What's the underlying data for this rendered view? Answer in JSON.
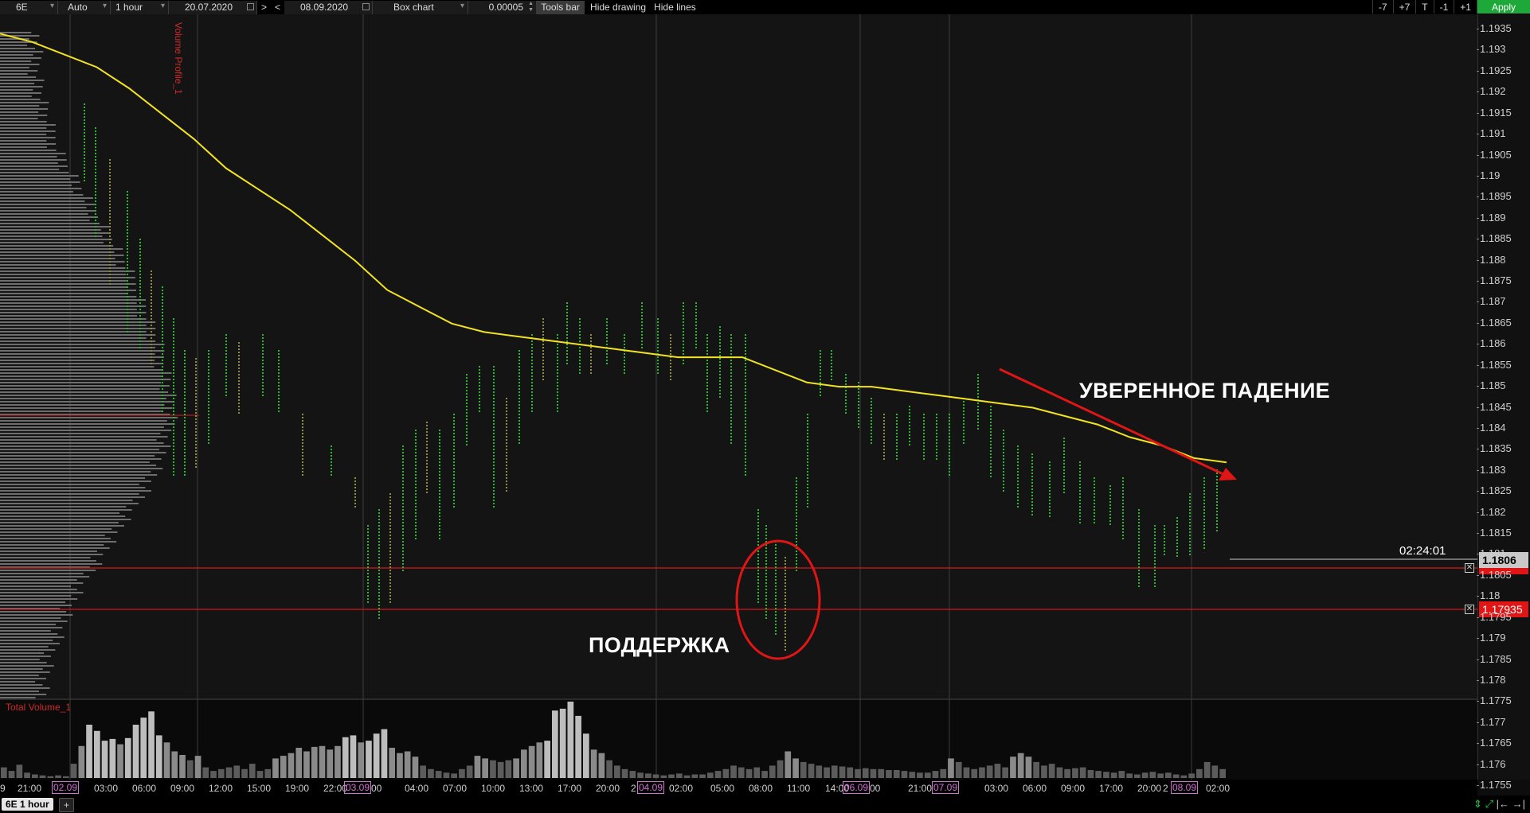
{
  "toolbar": {
    "symbol": "6E",
    "mode": "Auto",
    "timeframe": "1 hour",
    "date_from": "20.07.2020",
    "nav_next": ">",
    "nav_prev": "<",
    "date_to": "08.09.2020",
    "chart_type": "Box chart",
    "tick_size": "0.00005",
    "tools_bar": "Tools bar",
    "hide_drawing": "Hide drawing",
    "hide_lines": "Hide lines",
    "minus7": "-7",
    "plus7": "+7",
    "t_btn": "T",
    "minus1": "-1",
    "plus1": "+1",
    "apply": "Apply"
  },
  "indicators": {
    "volume_profile": "Volume Profile_1",
    "total_volume": "Total Volume_1"
  },
  "annotations": {
    "falling": "УВЕРЕННОЕ ПАДЕНИЕ",
    "support": "ПОДДЕРЖКА"
  },
  "status": {
    "timer": "02:24:01",
    "last_price": "1.1806",
    "level_price": "1.17935"
  },
  "price_axis": [
    "1.1935",
    "1.193",
    "1.1925",
    "1.192",
    "1.1915",
    "1.191",
    "1.1905",
    "1.19",
    "1.1895",
    "1.189",
    "1.1885",
    "1.188",
    "1.1875",
    "1.187",
    "1.1865",
    "1.186",
    "1.1855",
    "1.185",
    "1.1845",
    "1.184",
    "1.1835",
    "1.183",
    "1.1825",
    "1.182",
    "1.1815",
    "1.181",
    "1.1805",
    "1.18",
    "1.1795",
    "1.179",
    "1.1785",
    "1.178",
    "1.1775",
    "1.177",
    "1.1765",
    "1.176",
    "1.1755"
  ],
  "time_axis": [
    "9",
    "21:00",
    "02.09",
    "03:00",
    "06:00",
    "09:00",
    "12:00",
    "15:00",
    "19:00",
    "22:00",
    "03.09",
    "00",
    "04:00",
    "07:00",
    "10:00",
    "13:00",
    "17:00",
    "20:00",
    "2",
    "04.09",
    "02:00",
    "05:00",
    "08:00",
    "11:00",
    "14:00",
    "06.09",
    "00",
    "21:00",
    "07.09",
    "03:00",
    "06:00",
    "09:00",
    "17:00",
    "20:00",
    "2",
    "08.09",
    "02:00"
  ],
  "bottom": {
    "tab_label": "6E 1 hour",
    "add_tab": "+"
  },
  "colors": {
    "ma_line": "#f2e41f",
    "annotation_red": "#e01515",
    "apply_green": "#1fa83a",
    "candle_green": "#2fb52f",
    "date_magenta": "#d070d0"
  },
  "chart_data": {
    "type": "line",
    "title": "",
    "ylim": [
      1.1752,
      1.1938
    ],
    "levels": [
      1.18,
      1.17935
    ],
    "last_price": 1.1806,
    "ma_series": {
      "y": [
        1.1934,
        1.1932,
        1.1929,
        1.1926,
        1.1921,
        1.1915,
        1.1909,
        1.1902,
        1.1897,
        1.1892,
        1.1886,
        1.188,
        1.1873,
        1.1869,
        1.1865,
        1.1863,
        1.1862,
        1.1861,
        1.186,
        1.1859,
        1.1858,
        1.1857,
        1.1857,
        1.1857,
        1.1854,
        1.1851,
        1.185,
        1.185,
        1.1849,
        1.1848,
        1.1847,
        1.1846,
        1.1845,
        1.1843,
        1.1841,
        1.1838,
        1.1836,
        1.1833,
        1.1832
      ]
    },
    "volume_bars": [
      12,
      8,
      15,
      6,
      4,
      3,
      2,
      3,
      2,
      16,
      36,
      60,
      53,
      42,
      44,
      38,
      45,
      60,
      68,
      75,
      48,
      40,
      30,
      26,
      20,
      25,
      12,
      8,
      10,
      12,
      14,
      10,
      16,
      8,
      10,
      22,
      25,
      28,
      34,
      30,
      35,
      36,
      32,
      36,
      46,
      48,
      40,
      42,
      50,
      55,
      34,
      28,
      30,
      24,
      14,
      10,
      8,
      6,
      5,
      10,
      14,
      25,
      22,
      20,
      18,
      20,
      22,
      32,
      36,
      40,
      42,
      76,
      78,
      86,
      70,
      50,
      32,
      28,
      20,
      14,
      10,
      8,
      6,
      5,
      4,
      3,
      4,
      5,
      3,
      4,
      4,
      6,
      8,
      10,
      14,
      12,
      10,
      12,
      8,
      14,
      20,
      30,
      22,
      18,
      16,
      14,
      12,
      14,
      13,
      12,
      10,
      11,
      10,
      10,
      9,
      9,
      8,
      7,
      6,
      6,
      8,
      10,
      22,
      18,
      12,
      10,
      12,
      14,
      16,
      12,
      24,
      28,
      24,
      18,
      14,
      16,
      12,
      10,
      11,
      12,
      9,
      8,
      7,
      6,
      8,
      5,
      4,
      6,
      7,
      5,
      6,
      4,
      3,
      5,
      10,
      18,
      14,
      10
    ]
  }
}
